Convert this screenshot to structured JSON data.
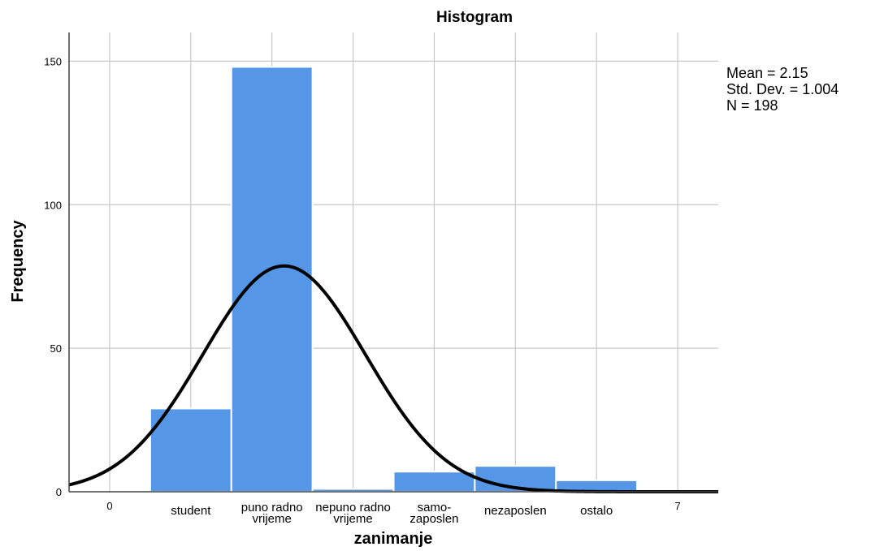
{
  "chart_data": {
    "type": "bar",
    "title": "Histogram",
    "xlabel": "zanimanje",
    "ylabel": "Frequency",
    "ylim": [
      0,
      160
    ],
    "xlim": [
      -0.5,
      7.5
    ],
    "y_ticks": [
      0,
      50,
      100,
      150
    ],
    "x_tick_labels": [
      {
        "x": 0,
        "lines": [
          "0"
        ]
      },
      {
        "x": 7,
        "lines": [
          "7"
        ]
      }
    ],
    "categories": [
      {
        "x": 1,
        "lines": [
          "student"
        ]
      },
      {
        "x": 2,
        "lines": [
          "puno radno",
          "vrijeme"
        ]
      },
      {
        "x": 3,
        "lines": [
          "nepuno radno",
          "vrijeme"
        ]
      },
      {
        "x": 4,
        "lines": [
          "samo-",
          "zaposlen"
        ]
      },
      {
        "x": 5,
        "lines": [
          "nezaposlen"
        ]
      },
      {
        "x": 6,
        "lines": [
          "ostalo"
        ]
      }
    ],
    "values": [
      29,
      148,
      1,
      7,
      9,
      4
    ],
    "bar_color": "#5596e6",
    "curve_color": "#000000",
    "normal_curve": {
      "mean": 2.15,
      "std": 1.004,
      "n": 198,
      "bin_width": 1
    },
    "stats": [
      "Mean = 2.15",
      "Std. Dev. = 1.004",
      "N = 198"
    ],
    "grid": true
  }
}
